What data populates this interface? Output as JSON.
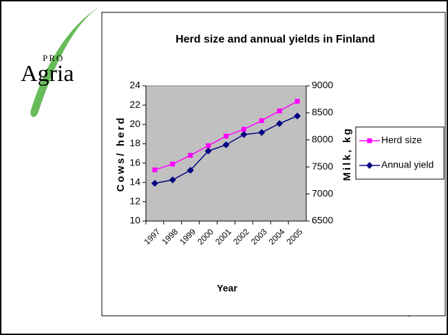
{
  "logo": {
    "small": "PRO",
    "name": "Agria"
  },
  "page_number": "9",
  "chart_data": {
    "type": "line",
    "title": "Herd size and annual yields in Finland",
    "categories": [
      "1997",
      "1998",
      "1999",
      "2000",
      "2001",
      "2002",
      "2003",
      "2004",
      "2005"
    ],
    "series": [
      {
        "name": "Herd size",
        "color": "#ff00ff",
        "marker": "square",
        "axis": "y",
        "values": [
          15.3,
          15.9,
          16.8,
          17.8,
          18.8,
          19.5,
          20.4,
          21.4,
          22.4
        ]
      },
      {
        "name": "Annual yield",
        "color": "#000080",
        "marker": "diamond",
        "axis": "y2",
        "values": [
          7198,
          7261,
          7439,
          7794,
          7909,
          8099,
          8137,
          8302,
          8442
        ]
      }
    ],
    "xlabel": "Year",
    "ylabel": "Cows/ herd",
    "y2label": "Milk, kg",
    "ylim": [
      10,
      24
    ],
    "yticks": [
      10,
      12,
      14,
      16,
      18,
      20,
      22,
      24
    ],
    "y2lim": [
      6500,
      9000
    ],
    "y2ticks": [
      6500,
      7000,
      7500,
      8000,
      8500,
      9000
    ],
    "grid": false,
    "legend": "right",
    "plot_background": "#c0c0c0"
  }
}
